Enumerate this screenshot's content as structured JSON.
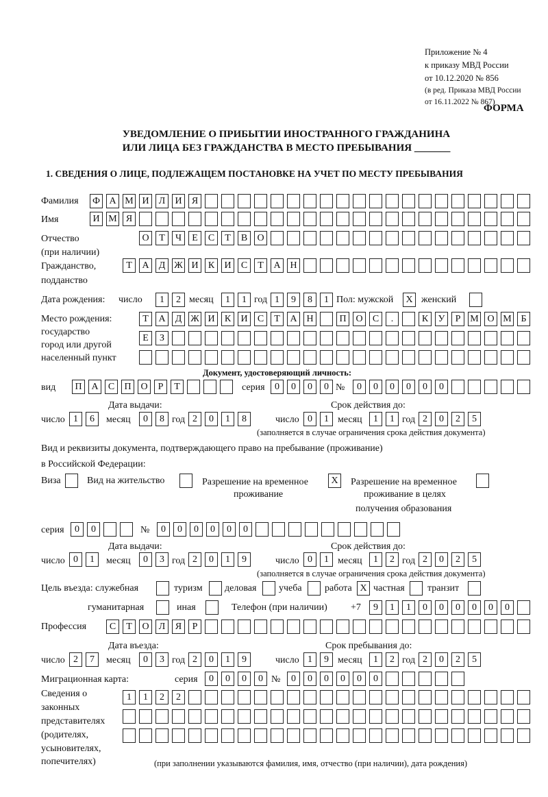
{
  "header": {
    "appendix": [
      "Приложение № 4",
      "к приказу МВД России",
      "от 10.12.2020 № 856"
    ],
    "edition": [
      "(в ред. Приказа МВД России",
      "от 16.11.2022 № 867)"
    ],
    "form_label": "ФОРМА",
    "title": [
      "УВЕДОМЛЕНИЕ О ПРИБЫТИИ ИНОСТРАННОГО ГРАЖДАНИНА",
      "ИЛИ ЛИЦА БЕЗ ГРАЖДАНСТВА В МЕСТО ПРЕБЫВАНИЯ _______"
    ],
    "section": "1. СВЕДЕНИЯ О ЛИЦЕ, ПОДЛЕЖАЩЕМ ПОСТАНОВКЕ НА УЧЕТ ПО МЕСТУ ПРЕБЫВАНИЯ"
  },
  "labels": {
    "surname": "Фамилия",
    "name": "Имя",
    "patronymic": [
      "Отчество",
      "(при наличии)"
    ],
    "citizenship": [
      "Гражданство,",
      "подданство"
    ],
    "birth_date": "Дата рождения:",
    "day": "число",
    "month": "месяц",
    "year": "год",
    "sex": "Пол: мужской",
    "female": "женский",
    "birthplace": [
      "Место рождения:",
      "государство",
      "город или другой",
      "населенный пункт"
    ],
    "id_doc": "Документ, удостоверяющий личность:",
    "kind": "вид",
    "series": "серия",
    "number": "№",
    "issue_date": "Дата выдачи:",
    "valid_until": "Срок действия до:",
    "valid_note": "(заполняется в случае ограничения срока действия документа)",
    "stay_doc": [
      "Вид и реквизиты документа, подтверждающего право на пребывание (проживание)",
      "в Российской Федерации:"
    ],
    "visa": "Виза",
    "residence": "Вид на жительство",
    "temp_res": [
      "Разрешение на временное",
      "проживание"
    ],
    "temp_res_edu": [
      "Разрешение на временное",
      "проживание в целях",
      "получения образования"
    ],
    "purpose": "Цель въезда: служебная",
    "tourism": "туризм",
    "business": "деловая",
    "study": "учеба",
    "work": "работа",
    "private": "частная",
    "transit": "транзит",
    "humanitarian": "гуманитарная",
    "other": "иная",
    "phone": "Телефон (при наличии)",
    "phone_prefix": "+7",
    "profession": "Профессия",
    "entry_date": "Дата въезда:",
    "stay_until": "Срок пребывания до:",
    "migration_card": "Миграционная карта:",
    "representatives": [
      "Сведения о",
      "законных",
      "представителях",
      "(родителях,",
      "усыновителях,",
      "попечителях)"
    ],
    "rep_note": "(при заполнении указываются фамилия, имя, отчество (при наличии), дата рождения)"
  },
  "fields": {
    "surname": "ФАМИЛИЯ",
    "name": "ИМЯ",
    "patronymic": "ОТЧЕСТВО",
    "citizenship": "ТАДЖИКИСТАН",
    "birth_day": "12",
    "birth_month": "11",
    "birth_year": "1981",
    "sex_male": "X",
    "sex_female": "",
    "birthplace_1": "ТАДЖИКИСТАН ПОС. КУРМОМБ",
    "birthplace_2": "ЕЗ",
    "birthplace_3": "",
    "doc_kind": "ПАСПОРТ",
    "doc_series": "0000",
    "doc_number": "000000",
    "doc_issue_day": "16",
    "doc_issue_month": "08",
    "doc_issue_year": "2018",
    "doc_valid_day": "01",
    "doc_valid_month": "11",
    "doc_valid_year": "2025",
    "visa": "",
    "residence": "",
    "temp_res": "X",
    "temp_res_edu": "",
    "stay_series": "00",
    "stay_number": "000000",
    "stay_issue_day": "01",
    "stay_issue_month": "03",
    "stay_issue_year": "2019",
    "stay_valid_day": "01",
    "stay_valid_month": "12",
    "stay_valid_year": "2025",
    "p_service": "",
    "p_tourism": "",
    "p_business": "",
    "p_study": "",
    "p_work": "X",
    "p_private": "",
    "p_transit": "",
    "p_humanitarian": "",
    "p_other": "",
    "phone": "911000000",
    "profession": "СТОЛЯР",
    "entry_day": "27",
    "entry_month": "03",
    "entry_year": "2019",
    "stay_day": "19",
    "stay_month": "12",
    "stay_year": "2025",
    "mc_series": "0000",
    "mc_number": "000000",
    "rep_1": "1122",
    "rep_2": "",
    "rep_3": ""
  }
}
